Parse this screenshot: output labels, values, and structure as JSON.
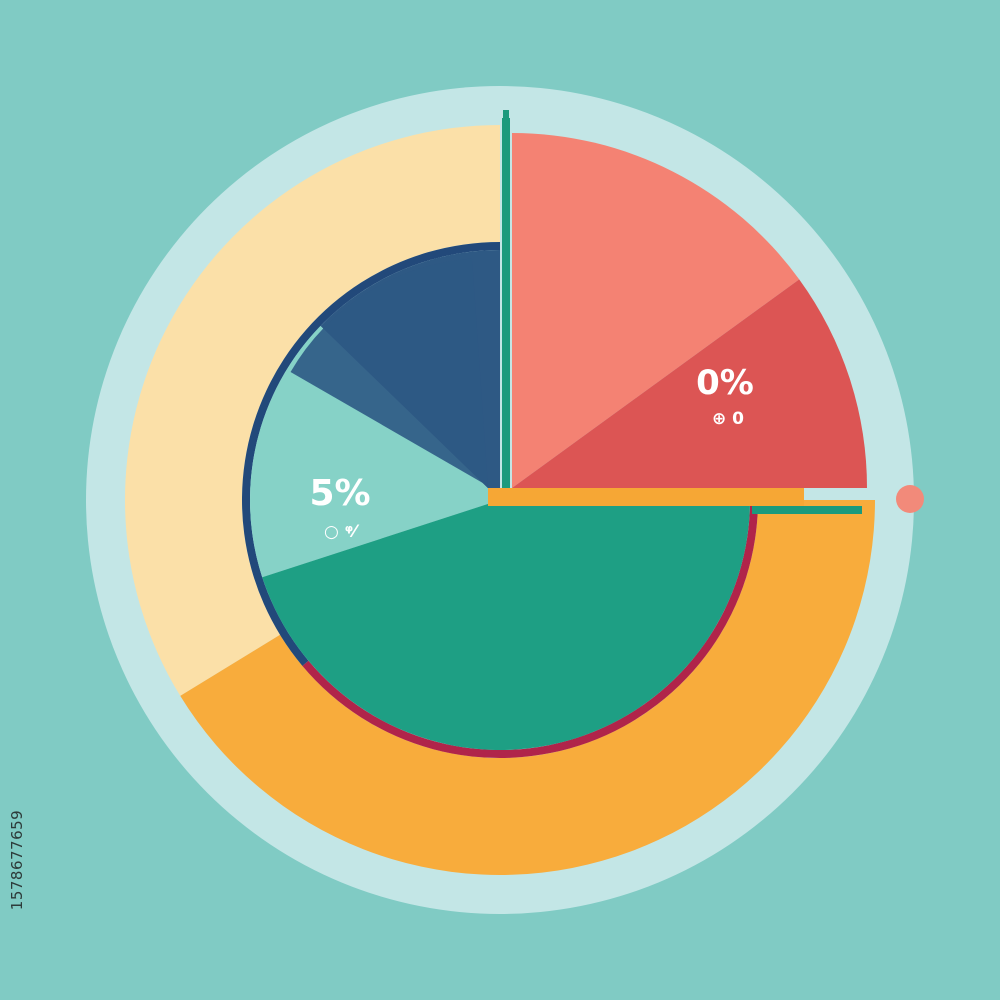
{
  "chart_data": {
    "type": "pie",
    "title": "",
    "colors": {
      "background": "#80cbc4",
      "halo": "#c3e6e6",
      "outer_ring_a": "#fbe0a8",
      "outer_ring_b": "#f8ac3c",
      "quadrant_a": "#f48273",
      "quadrant_b": "#dc5554",
      "inner_navy": "#2e5984",
      "inner_navy_dark": "#22497a",
      "inner_mint": "#86d2c7",
      "inner_green": "#1e9f84",
      "accent_red": "#b0244a",
      "accent_dot": "#f28a7a",
      "divider_green": "#1b9a7d",
      "divider_orange": "#f6a735"
    },
    "outer_ring": [
      {
        "value": 45,
        "color": "#fbe0a8"
      },
      {
        "value": 55,
        "color": "#f8ac3c"
      }
    ],
    "exploded_quadrant": [
      {
        "value": 60,
        "color": "#f48273"
      },
      {
        "value": 40,
        "color": "#dc5554"
      }
    ],
    "inner_pie": [
      {
        "value": 17,
        "color": "#2e5984"
      },
      {
        "value": 23,
        "color": "#86d2c7"
      },
      {
        "value": 60,
        "color": "#1e9f84"
      }
    ],
    "labels": {
      "quadrant_percent": "0%",
      "quadrant_glyphs": "⊕  0",
      "inner_percent": "5%",
      "inner_glyphs": "○  ᵠ⁄"
    },
    "stock_id": "1578677659"
  }
}
